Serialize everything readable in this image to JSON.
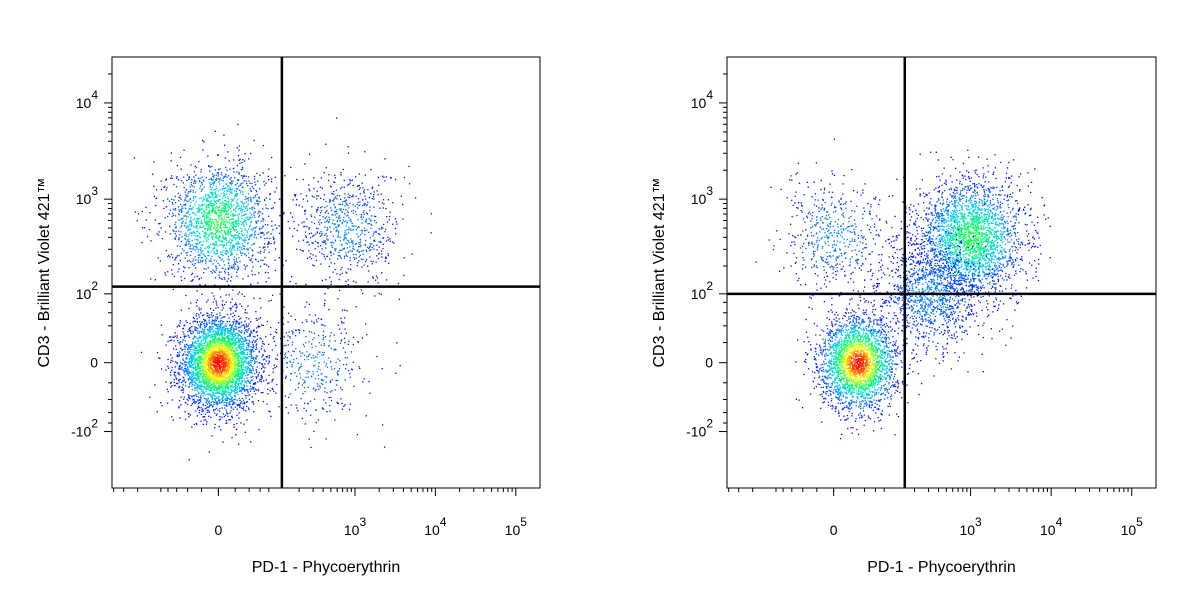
{
  "chart_data": [
    {
      "type": "scatter",
      "xlabel": "PD-1 - Phycoerythrin",
      "ylabel": "CD3 - Brilliant Violet 421™",
      "x_scale": "biexponential",
      "y_scale": "biexponential",
      "x_ticks": [
        {
          "value": 0,
          "base": "0",
          "exp": ""
        },
        {
          "value": 1000,
          "base": "10",
          "exp": "3"
        },
        {
          "value": 10000,
          "base": "10",
          "exp": "4"
        },
        {
          "value": 100000,
          "base": "10",
          "exp": "5"
        }
      ],
      "y_ticks": [
        {
          "value": 10000,
          "base": "10",
          "exp": "4"
        },
        {
          "value": 1000,
          "base": "10",
          "exp": "3"
        },
        {
          "value": 100,
          "base": "10",
          "exp": "2"
        },
        {
          "value": 0,
          "base": "0",
          "exp": ""
        },
        {
          "value": -100,
          "base": "-10",
          "exp": "2"
        }
      ],
      "quadrant_gate": {
        "x": 120,
        "y": 120
      },
      "grid": false,
      "populations": [
        {
          "x": 0,
          "y": 0,
          "count": 3800,
          "density": "highest"
        },
        {
          "x": 0,
          "y": 600,
          "count": 1800,
          "density": "medium"
        },
        {
          "x": 800,
          "y": 500,
          "count": 700,
          "density": "low"
        },
        {
          "x": 300,
          "y": 0,
          "count": 400,
          "density": "low"
        }
      ]
    },
    {
      "type": "scatter",
      "xlabel": "PD-1 - Phycoerythrin",
      "ylabel": "CD3 - Brilliant Violet 421™",
      "x_scale": "biexponential",
      "y_scale": "biexponential",
      "x_ticks": [
        {
          "value": 0,
          "base": "0",
          "exp": ""
        },
        {
          "value": 1000,
          "base": "10",
          "exp": "3"
        },
        {
          "value": 10000,
          "base": "10",
          "exp": "4"
        },
        {
          "value": 100000,
          "base": "10",
          "exp": "5"
        }
      ],
      "y_ticks": [
        {
          "value": 10000,
          "base": "10",
          "exp": "4"
        },
        {
          "value": 1000,
          "base": "10",
          "exp": "3"
        },
        {
          "value": 100,
          "base": "10",
          "exp": "2"
        },
        {
          "value": 0,
          "base": "0",
          "exp": ""
        },
        {
          "value": -100,
          "base": "-10",
          "exp": "2"
        }
      ],
      "quadrant_gate": {
        "x": 150,
        "y": 100
      },
      "grid": false,
      "populations": [
        {
          "x": 30,
          "y": 0,
          "count": 2600,
          "density": "highest"
        },
        {
          "x": 1000,
          "y": 400,
          "count": 2600,
          "density": "medium"
        },
        {
          "x": 300,
          "y": 100,
          "count": 1200,
          "density": "low"
        },
        {
          "x": 0,
          "y": 400,
          "count": 500,
          "density": "low"
        }
      ]
    }
  ],
  "colors": {
    "axis": "#000000",
    "gate": "#000000",
    "density_scale": [
      "#0000ff",
      "#00c8ff",
      "#00ff66",
      "#ffff00",
      "#ff0000"
    ]
  }
}
